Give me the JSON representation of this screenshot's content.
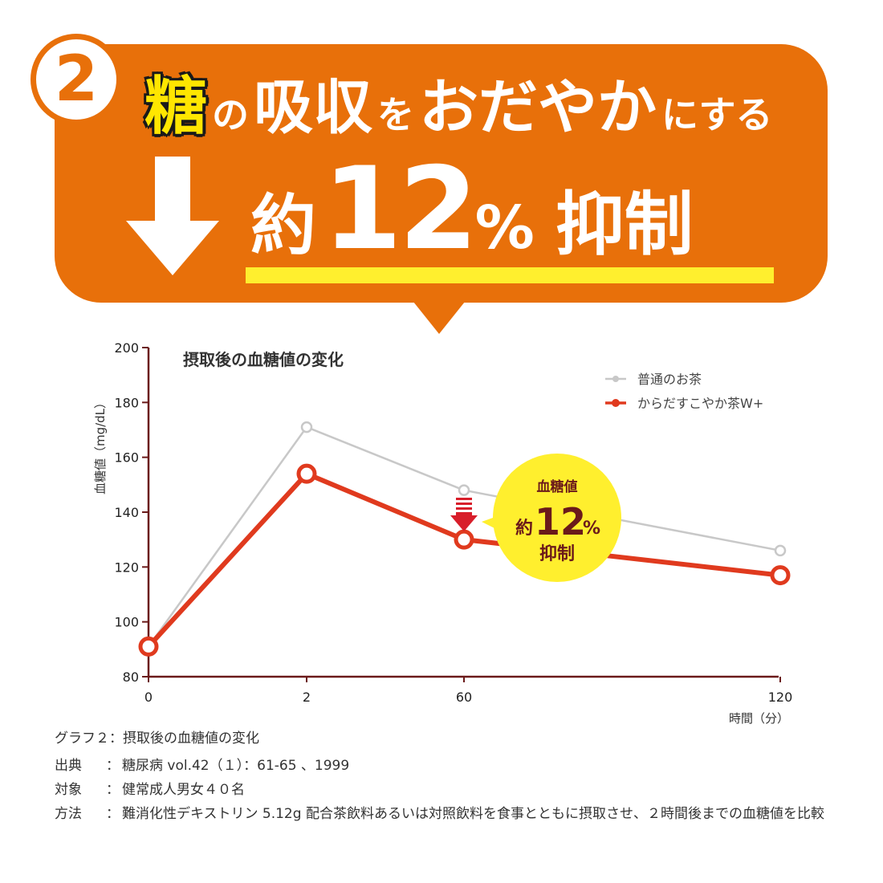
{
  "header": {
    "badge_number": "2",
    "headline_key": "糖",
    "headline_part1": "の",
    "headline_part2": "吸収",
    "headline_part3": "を",
    "headline_part4": "おだやか",
    "headline_part5": "にする",
    "reduction_prefix": "約",
    "reduction_number": "12",
    "reduction_unit": "%",
    "reduction_suffix": "抑制",
    "colors": {
      "banner": "#e8700a",
      "highlight": "#ffe600"
    }
  },
  "chart_data": {
    "type": "line",
    "title": "摂取後の血糖値の変化",
    "ylabel": "血糖値（mg/dL）",
    "xlabel": "時間（分）",
    "ylim": [
      80,
      200
    ],
    "yticks": [
      "80",
      "100",
      "120",
      "140",
      "160",
      "180",
      "200"
    ],
    "categories": [
      "0",
      "2",
      "60",
      "120"
    ],
    "series": [
      {
        "name": "普通のお茶",
        "color": "#c8c8c8",
        "values": [
          91,
          171,
          148,
          126
        ]
      },
      {
        "name": "からだすこやか茶W+",
        "color": "#e03a1e",
        "values": [
          91,
          154,
          130,
          117
        ]
      }
    ],
    "annotation": {
      "line1": "血糖値",
      "prefix": "約",
      "number": "12",
      "unit": "%",
      "line3": "抑制"
    },
    "legend": "top-right"
  },
  "footnotes": {
    "caption": "グラフ２：摂取後の血糖値の変化",
    "rows": [
      {
        "label": "出典",
        "colon": "：",
        "text": "糖尿病 vol.42（１）：61-65 、1999"
      },
      {
        "label": "対象",
        "colon": "：",
        "text": "健常成人男女４０名"
      },
      {
        "label": "方法",
        "colon": "：",
        "text": "難消化性デキストリン 5.12g 配合茶飲料あるいは対照飲料を食事とともに摂取させ、２時間後までの血糖値を比較"
      }
    ]
  }
}
